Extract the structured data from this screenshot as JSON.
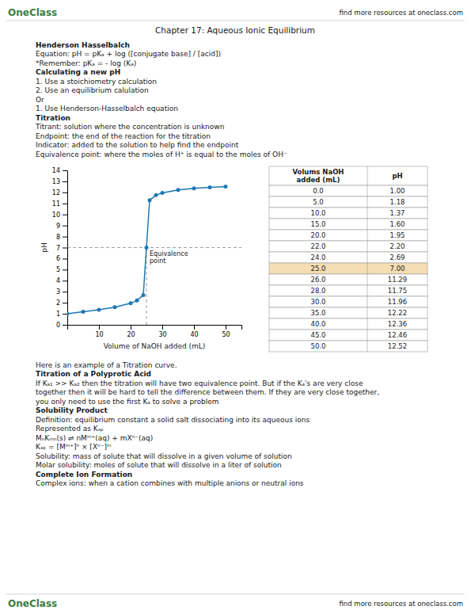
{
  "page": {
    "header": {
      "logo": "OneClass",
      "logo_color": "#3a7d44",
      "text": "find more resources at oneclass.com"
    },
    "title": "Chapter 17: Aqueous Ionic Equilibrium",
    "sections_before": [
      {
        "heading": "Henderson Hasselbalch",
        "lines": [
          "Equation: pH = pKₐ + log ([conjugate base] / [acid])",
          "*Remember: pKₐ = - log (Kₐ)"
        ]
      },
      {
        "heading": "Calculating a new pH",
        "lines": [
          "1.  Use a stoichiometry calculation",
          "2.  Use an equilibrium calulation",
          "Or",
          "1.  Use Henderson-Hasselbalch equation"
        ]
      },
      {
        "heading": "Titration",
        "lines": [
          "Titrant: solution where the concentration is unknown",
          "Endpoint: the end of the reaction for the titration",
          "Indicator: added to the solution to help find the endpoint",
          "Equivalence point: where the moles of H⁺ is equal to the moles of OH⁻"
        ]
      }
    ],
    "sections_after": [
      {
        "lines": [
          "Here is an example of a Titration curve."
        ]
      },
      {
        "heading": "Titration of a Polyprotic Acid",
        "lines": [
          "If Kₐ₁ >> Kₐ₂ then the titration will have two equivalence point. But if the Kₐ's are very close",
          "together then it will be hard to tell the difference between them.  If they are very close together,",
          "you only need to use the first Kₐ to solve a problem"
        ]
      },
      {
        "heading": "Solubility Product",
        "lines": [
          "Definition: equilibrium constant a solid salt dissociating into its aqueous ions",
          "Represented as Kₛₚ",
          "MₙKₘₙ(s) ⇌ nMᵐ⁺(aq) + mXⁿ⁻(aq)",
          "Kₛₚ = [Mᵐ⁺]ⁿ × [Xⁿ⁻]ᵐ",
          "Solubility: mass of solute that will dissolve in a given volume of solution",
          "Molar solubility: moles of solute that will dissolve in a liter of solution"
        ]
      },
      {
        "heading": "Complete Ion Formation",
        "lines": [
          "Complex ions: when a cation combines with multiple anions or neutral ions"
        ]
      }
    ],
    "footer": {
      "logo": "OneClass",
      "logo_color": "#3a7d44",
      "text": "find more resources at oneclass.com"
    }
  },
  "chart_data": [
    {
      "type": "line",
      "x": [
        0.0,
        5.0,
        10.0,
        15.0,
        20.0,
        22.0,
        24.0,
        25.0,
        26.0,
        28.0,
        30.0,
        35.0,
        40.0,
        45.0,
        50.0
      ],
      "values": [
        1.0,
        1.18,
        1.37,
        1.6,
        1.95,
        2.2,
        2.69,
        7.0,
        11.29,
        11.75,
        11.96,
        12.22,
        12.36,
        12.46,
        12.52
      ],
      "marker": "circle",
      "line_style": "solid",
      "xlabel": "Volume of NaOH added (mL)",
      "ylabel": "pH",
      "xlim": [
        0,
        55
      ],
      "ylim": [
        0,
        14
      ],
      "xticks": [
        10,
        20,
        30,
        40,
        50
      ],
      "yticks": [
        0,
        1,
        2,
        3,
        4,
        5,
        6,
        7,
        8,
        9,
        10,
        11,
        12,
        13,
        14
      ],
      "grid": false,
      "annotations": [
        {
          "text": "Equivalence\npoint",
          "x": 25.0,
          "y": 7.0
        }
      ]
    },
    {
      "type": "table",
      "columns": [
        "Volums NaOH\nadded (mL)",
        "pH"
      ],
      "rows": [
        [
          "0.0",
          "1.00"
        ],
        [
          "5.0",
          "1.18"
        ],
        [
          "10.0",
          "1.37"
        ],
        [
          "15.0",
          "1.60"
        ],
        [
          "20.0",
          "1.95"
        ],
        [
          "22.0",
          "2.20"
        ],
        [
          "24.0",
          "2.69"
        ],
        [
          "25.0",
          "7.00"
        ],
        [
          "26.0",
          "11.29"
        ],
        [
          "28.0",
          "11.75"
        ],
        [
          "30.0",
          "11.96"
        ],
        [
          "35.0",
          "12.22"
        ],
        [
          "40.0",
          "12.36"
        ],
        [
          "45.0",
          "12.46"
        ],
        [
          "50.0",
          "12.52"
        ]
      ],
      "colors": [
        "#ffffff",
        "#ffffff",
        "#ffffff",
        "#ffffff",
        "#ffffff",
        "#ffffff",
        "#ffffff",
        "#f5deb3",
        "#ffffff",
        "#ffffff",
        "#ffffff",
        "#ffffff",
        "#ffffff",
        "#ffffff",
        "#ffffff"
      ]
    }
  ]
}
